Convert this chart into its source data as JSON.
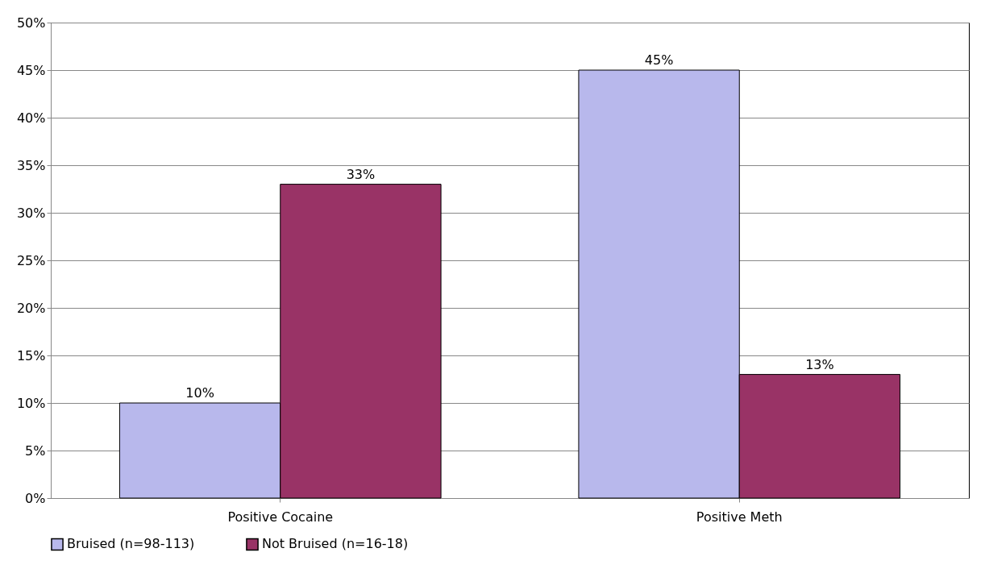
{
  "chart_data": {
    "type": "bar",
    "categories": [
      "Positive Cocaine",
      "Positive Meth"
    ],
    "series": [
      {
        "name": "Bruised (n=98-113)",
        "color": "#b8b8ec",
        "values": [
          10,
          45
        ],
        "value_labels": [
          "10%",
          "45%"
        ]
      },
      {
        "name": "Not Bruised (n=16-18)",
        "color": "#993366",
        "values": [
          33,
          13
        ],
        "value_labels": [
          "33%",
          "13%"
        ]
      }
    ],
    "ylim": [
      0,
      50
    ],
    "yticks": [
      {
        "value": 0,
        "label": "0%"
      },
      {
        "value": 5,
        "label": "5%"
      },
      {
        "value": 10,
        "label": "10%"
      },
      {
        "value": 15,
        "label": "15%"
      },
      {
        "value": 20,
        "label": "20%"
      },
      {
        "value": 25,
        "label": "25%"
      },
      {
        "value": 30,
        "label": "30%"
      },
      {
        "value": 35,
        "label": "35%"
      },
      {
        "value": 40,
        "label": "40%"
      },
      {
        "value": 45,
        "label": "45%"
      },
      {
        "value": 50,
        "label": "50%"
      }
    ],
    "grid": "y",
    "legend": "bottom"
  }
}
